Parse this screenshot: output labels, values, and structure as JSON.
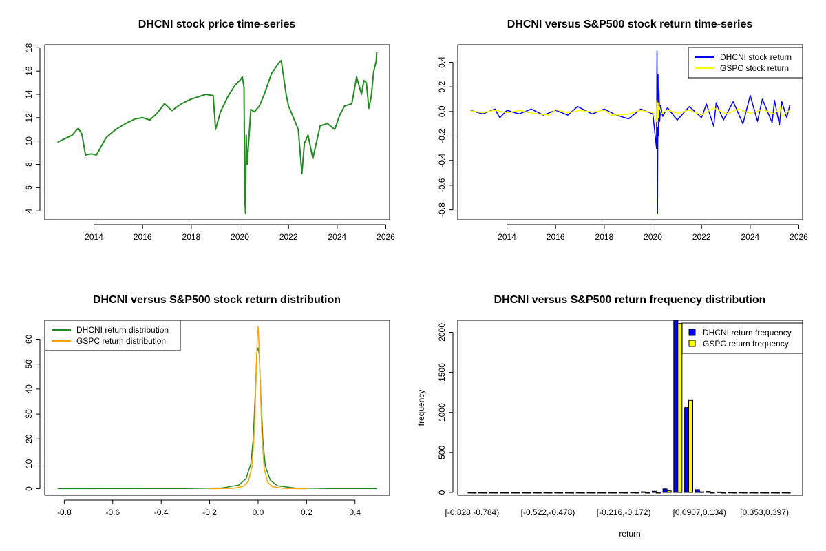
{
  "chart_data": [
    {
      "id": "price",
      "type": "line",
      "title": "DHCNI stock price time-series",
      "xlabel": "",
      "ylabel": "",
      "xlim": [
        2012.5,
        2025.63
      ],
      "ylim": [
        3.8,
        17.7
      ],
      "xticks": [
        2014,
        2016,
        2018,
        2020,
        2022,
        2024,
        2026
      ],
      "yticks": [
        4,
        6,
        8,
        10,
        12,
        14,
        16,
        18
      ],
      "series": [
        {
          "name": "DHCNI price",
          "color": "#228b22",
          "x": [
            2012.5,
            2012.8,
            2013.1,
            2013.35,
            2013.5,
            2013.65,
            2013.9,
            2014.1,
            2014.5,
            2014.9,
            2015.3,
            2015.7,
            2016.0,
            2016.3,
            2016.6,
            2016.9,
            2017.2,
            2017.6,
            2018.0,
            2018.3,
            2018.6,
            2018.9,
            2019.0,
            2019.2,
            2019.5,
            2019.8,
            2020.0,
            2020.1,
            2020.17,
            2020.2,
            2020.23,
            2020.26,
            2020.3,
            2020.45,
            2020.6,
            2020.8,
            2021.0,
            2021.3,
            2021.6,
            2021.7,
            2021.9,
            2022.0,
            2022.2,
            2022.4,
            2022.55,
            2022.65,
            2022.8,
            2023.0,
            2023.3,
            2023.6,
            2023.9,
            2024.1,
            2024.3,
            2024.6,
            2024.8,
            2025.0,
            2025.1,
            2025.2,
            2025.3,
            2025.4,
            2025.5,
            2025.6,
            2025.63
          ],
          "y": [
            9.9,
            10.2,
            10.5,
            11.1,
            10.6,
            8.8,
            8.9,
            8.8,
            10.3,
            11.0,
            11.5,
            11.9,
            12.0,
            11.8,
            12.4,
            13.2,
            12.6,
            13.2,
            13.6,
            13.8,
            14.0,
            13.9,
            11.0,
            12.5,
            13.8,
            14.8,
            15.2,
            15.5,
            14.6,
            5.0,
            3.8,
            10.5,
            8.0,
            12.7,
            12.5,
            13.0,
            14.0,
            15.8,
            16.7,
            16.9,
            14.0,
            13.0,
            12.0,
            11.0,
            7.2,
            9.8,
            10.5,
            8.5,
            11.3,
            11.5,
            11.0,
            12.2,
            13.0,
            13.2,
            15.5,
            14.0,
            15.2,
            15.0,
            12.8,
            13.8,
            16.0,
            16.8,
            17.6
          ]
        }
      ]
    },
    {
      "id": "returns",
      "type": "line",
      "title": "DHCNI versus S&P500 stock return time-series",
      "xlabel": "",
      "ylabel": "",
      "xlim": [
        2012.5,
        2025.63
      ],
      "ylim": [
        -0.828,
        0.49
      ],
      "xticks": [
        2014,
        2016,
        2018,
        2020,
        2022,
        2024,
        2026
      ],
      "yticks": [
        0.4,
        0.2,
        0.0,
        -0.2,
        -0.4,
        -0.6,
        -0.8
      ],
      "ytick_labels": [
        "0.4",
        "0.2",
        "0.0",
        "-0.2",
        "-0.4",
        "-0.6",
        "-0.8"
      ],
      "legend": [
        "DHCNI stock return",
        "GSPC stock return"
      ],
      "legend_position": "top-right",
      "series": [
        {
          "name": "DHCNI stock return",
          "color": "#0000ff",
          "x": [
            2012.5,
            2013.0,
            2013.5,
            2013.7,
            2014.0,
            2014.5,
            2015.0,
            2015.5,
            2016.0,
            2016.5,
            2016.9,
            2017.5,
            2018.0,
            2018.5,
            2019.0,
            2019.5,
            2020.0,
            2020.15,
            2020.17,
            2020.19,
            2020.21,
            2020.23,
            2020.25,
            2020.28,
            2020.32,
            2020.4,
            2020.6,
            2021.0,
            2021.5,
            2022.0,
            2022.2,
            2022.5,
            2022.6,
            2022.9,
            2023.3,
            2023.7,
            2024.0,
            2024.3,
            2024.5,
            2024.9,
            2025.0,
            2025.2,
            2025.3,
            2025.5,
            2025.63
          ],
          "y": [
            0.01,
            -0.02,
            0.02,
            -0.05,
            0.01,
            -0.02,
            0.02,
            -0.03,
            0.01,
            -0.03,
            0.04,
            -0.02,
            0.02,
            -0.03,
            -0.06,
            0.02,
            -0.02,
            -0.3,
            0.49,
            -0.828,
            0.3,
            -0.2,
            0.17,
            -0.08,
            0.05,
            -0.04,
            0.03,
            -0.07,
            0.04,
            -0.05,
            0.06,
            -0.12,
            0.07,
            -0.07,
            0.08,
            -0.1,
            0.13,
            -0.08,
            0.1,
            -0.09,
            0.09,
            -0.11,
            0.08,
            -0.05,
            0.05
          ]
        },
        {
          "name": "GSPC stock return",
          "color": "#ffff00",
          "x": [
            2012.5,
            2013.0,
            2013.5,
            2014.0,
            2014.5,
            2015.0,
            2015.7,
            2016.0,
            2016.5,
            2017.0,
            2017.5,
            2018.0,
            2018.3,
            2018.9,
            2019.5,
            2020.0,
            2020.15,
            2020.17,
            2020.19,
            2020.21,
            2020.23,
            2020.26,
            2020.35,
            2020.6,
            2021.0,
            2021.5,
            2022.0,
            2022.5,
            2023.0,
            2023.5,
            2024.0,
            2024.5,
            2025.0,
            2025.25,
            2025.3,
            2025.63
          ],
          "y": [
            0.005,
            -0.01,
            0.01,
            -0.01,
            0.008,
            -0.012,
            -0.03,
            0.015,
            -0.01,
            0.008,
            -0.005,
            0.01,
            -0.03,
            -0.025,
            0.01,
            -0.01,
            -0.08,
            0.09,
            -0.12,
            0.07,
            -0.05,
            0.04,
            -0.02,
            0.015,
            -0.015,
            0.012,
            -0.03,
            0.03,
            -0.02,
            0.02,
            -0.015,
            0.015,
            -0.02,
            0.04,
            -0.04,
            0.01
          ]
        }
      ]
    },
    {
      "id": "density",
      "type": "line",
      "title": "DHCNI versus S&P500 stock return distribution",
      "xlabel": "",
      "ylabel": "",
      "xlim": [
        -0.828,
        0.49
      ],
      "ylim": [
        0,
        65
      ],
      "xticks": [
        -0.8,
        -0.6,
        -0.4,
        -0.2,
        0.0,
        0.2,
        0.4
      ],
      "xtick_labels": [
        "-0.8",
        "-0.6",
        "-0.4",
        "-0.2",
        "0.0",
        "0.2",
        "0.4"
      ],
      "yticks": [
        0,
        10,
        20,
        30,
        40,
        50,
        60
      ],
      "legend": [
        "DHCNI return distribution",
        "GSPC return distribution"
      ],
      "legend_position": "top-left",
      "series": [
        {
          "name": "DHCNI return distribution",
          "color": "#228b22",
          "x": [
            -0.828,
            -0.3,
            -0.15,
            -0.08,
            -0.05,
            -0.03,
            -0.02,
            -0.01,
            -0.005,
            0.0,
            0.005,
            0.01,
            0.02,
            0.03,
            0.05,
            0.08,
            0.15,
            0.3,
            0.49
          ],
          "y": [
            0.05,
            0.1,
            0.3,
            1.5,
            4,
            10,
            20,
            42,
            55,
            56.5,
            54,
            40,
            19,
            9,
            3.5,
            1.2,
            0.3,
            0.1,
            0.05
          ]
        },
        {
          "name": "GSPC return distribution",
          "color": "#ffa500",
          "x": [
            -0.2,
            -0.1,
            -0.06,
            -0.04,
            -0.025,
            -0.015,
            -0.008,
            -0.003,
            0.0,
            0.003,
            0.008,
            0.015,
            0.025,
            0.04,
            0.06,
            0.1,
            0.2
          ],
          "y": [
            0.0,
            0.2,
            1.0,
            3.0,
            9.0,
            24.0,
            46.0,
            61.0,
            65.0,
            60.0,
            45.0,
            23.0,
            8.0,
            2.5,
            0.8,
            0.2,
            0.0
          ]
        }
      ]
    },
    {
      "id": "histogram",
      "type": "bar",
      "title": "DHCNI versus S&P500 return frequency distribution",
      "xlabel": "return",
      "ylabel": "frequency",
      "ylim": [
        0,
        2150
      ],
      "yticks": [
        0,
        500,
        1000,
        1500,
        2000
      ],
      "xtick_labels": [
        "[-0.828,-0.784)",
        "[-0.522,-0.478)",
        "[-0.216,-0.172)",
        "[0.0907,0.134)",
        "[0.353,0.397)"
      ],
      "xtick_bins": [
        0,
        7,
        14,
        21,
        27
      ],
      "legend": [
        "DHCNI return frequency",
        "GSPC return frequency"
      ],
      "legend_position": "top-right",
      "bins": 30,
      "series": [
        {
          "name": "DHCNI return frequency",
          "color": "#0000ff",
          "values": [
            1,
            1,
            1,
            1,
            1,
            1,
            1,
            1,
            1,
            1,
            1,
            1,
            1,
            1,
            2,
            3,
            8,
            15,
            45,
            2150,
            1060,
            35,
            12,
            6,
            3,
            2,
            1,
            1,
            1,
            1
          ]
        },
        {
          "name": "GSPC return frequency",
          "color": "#ffff00",
          "values": [
            0,
            0,
            0,
            0,
            0,
            0,
            0,
            0,
            0,
            0,
            0,
            0,
            0,
            0,
            0,
            0,
            0,
            0,
            20,
            2110,
            1150,
            8,
            0,
            0,
            0,
            0,
            0,
            0,
            0,
            0
          ]
        }
      ]
    }
  ]
}
